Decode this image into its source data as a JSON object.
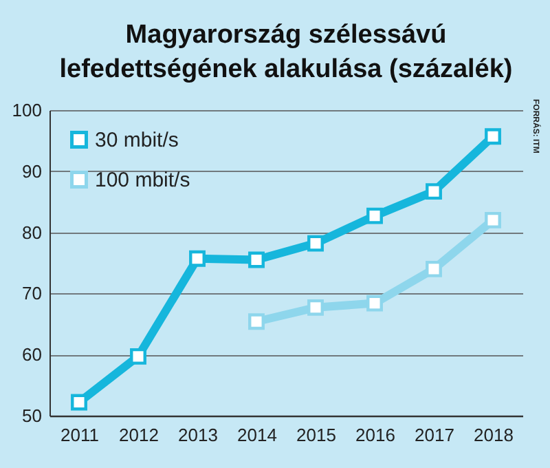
{
  "chart_data": {
    "type": "line",
    "title": "Magyarország szélessávú lefedettségének alakulása (százalék)",
    "categories": [
      "2011",
      "2012",
      "2013",
      "2014",
      "2015",
      "2016",
      "2017",
      "2018"
    ],
    "series": [
      {
        "name": "30 mbit/s",
        "color": "#16b6dc",
        "values": [
          52.2,
          59.7,
          75.7,
          75.5,
          78.2,
          82.7,
          86.7,
          95.7
        ]
      },
      {
        "name": "100 mbit/s",
        "color": "#8ed6ec",
        "values": [
          null,
          null,
          null,
          65.4,
          67.7,
          68.4,
          74.0,
          82.0
        ]
      }
    ],
    "ylim": [
      50,
      100
    ],
    "yticks": [
      50,
      60,
      70,
      80,
      90,
      100
    ],
    "grid": "y",
    "legend": "top left",
    "marker": "square",
    "annotations": [
      "FORRÁS: ITM"
    ]
  }
}
